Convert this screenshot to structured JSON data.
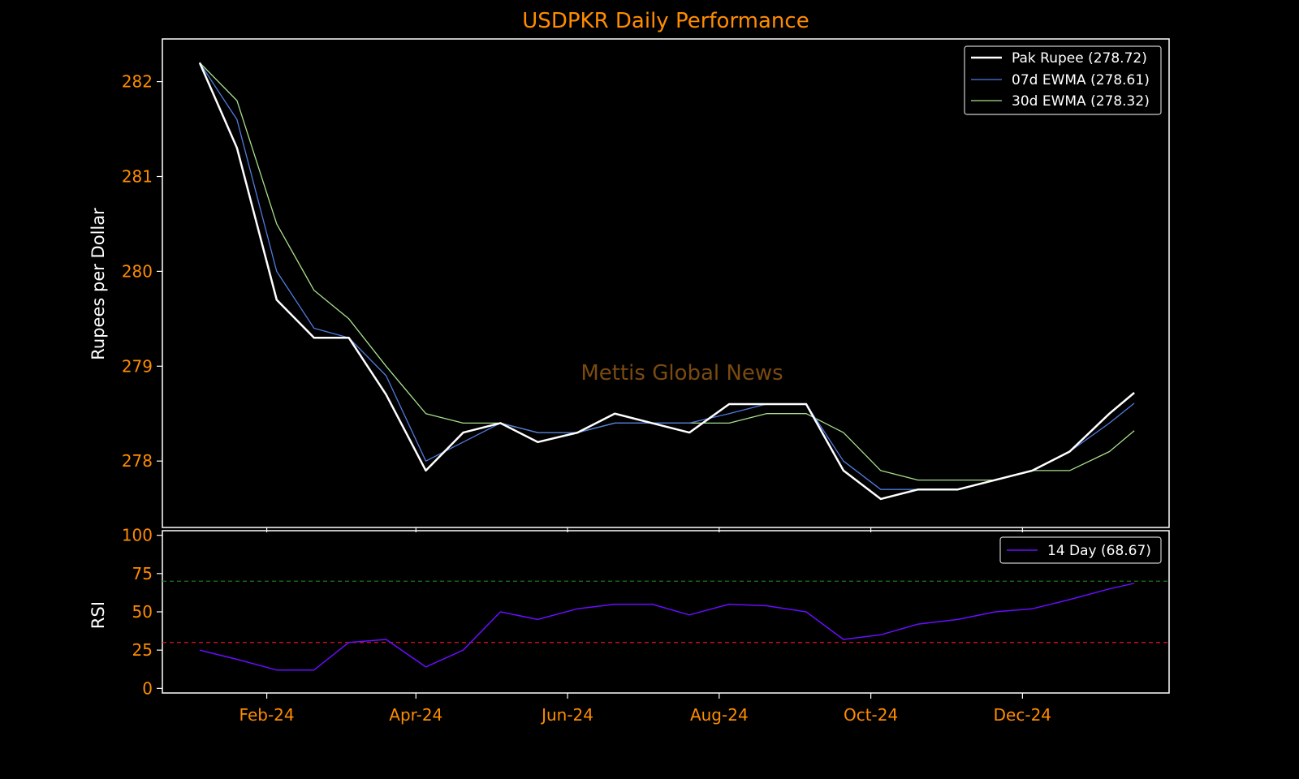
{
  "chart_data": [
    {
      "type": "line",
      "title": "USDPKR Daily Performance",
      "ylabel": "Rupees per Dollar",
      "xlabel": "",
      "x": [
        "2024-01-05",
        "2024-01-20",
        "2024-02-05",
        "2024-02-20",
        "2024-03-05",
        "2024-03-20",
        "2024-04-05",
        "2024-04-20",
        "2024-05-05",
        "2024-05-20",
        "2024-06-05",
        "2024-06-20",
        "2024-07-05",
        "2024-07-20",
        "2024-08-05",
        "2024-08-20",
        "2024-09-05",
        "2024-09-20",
        "2024-10-05",
        "2024-10-20",
        "2024-11-05",
        "2024-11-20",
        "2024-12-05",
        "2024-12-20",
        "2025-01-05",
        "2025-01-15"
      ],
      "series": [
        {
          "name": "Pak Rupee (278.72)",
          "color": "#ffffff",
          "values": [
            282.2,
            281.3,
            279.7,
            279.3,
            279.3,
            278.7,
            277.9,
            278.3,
            278.4,
            278.2,
            278.3,
            278.5,
            278.4,
            278.3,
            278.6,
            278.6,
            278.6,
            277.9,
            277.6,
            277.7,
            277.7,
            277.8,
            277.9,
            278.1,
            278.5,
            278.72
          ]
        },
        {
          "name": "07d EWMA (278.61)",
          "color": "#4f7be0",
          "values": [
            282.2,
            281.6,
            280.0,
            279.4,
            279.3,
            278.9,
            278.0,
            278.2,
            278.4,
            278.3,
            278.3,
            278.4,
            278.4,
            278.4,
            278.5,
            278.6,
            278.6,
            278.0,
            277.7,
            277.7,
            277.7,
            277.8,
            277.9,
            278.1,
            278.4,
            278.61
          ]
        },
        {
          "name": "30d EWMA (278.32)",
          "color": "#a8e08c",
          "values": [
            282.2,
            281.8,
            280.5,
            279.8,
            279.5,
            279.0,
            278.5,
            278.4,
            278.4,
            278.3,
            278.3,
            278.4,
            278.4,
            278.4,
            278.4,
            278.5,
            278.5,
            278.3,
            277.9,
            277.8,
            277.8,
            277.8,
            277.9,
            277.9,
            278.1,
            278.32
          ]
        }
      ],
      "yticks": [
        "278",
        "279",
        "280",
        "281",
        "282"
      ],
      "ylim": [
        277.3,
        282.45
      ],
      "legend_position": "top-right",
      "annotation": "Mettis Global News",
      "grid": false
    },
    {
      "type": "line",
      "ylabel": "RSI",
      "x": [
        "2024-01-05",
        "2024-01-20",
        "2024-02-05",
        "2024-02-20",
        "2024-03-05",
        "2024-03-20",
        "2024-04-05",
        "2024-04-20",
        "2024-05-05",
        "2024-05-20",
        "2024-06-05",
        "2024-06-20",
        "2024-07-05",
        "2024-07-20",
        "2024-08-05",
        "2024-08-20",
        "2024-09-05",
        "2024-09-20",
        "2024-10-05",
        "2024-10-20",
        "2024-11-05",
        "2024-11-20",
        "2024-12-05",
        "2024-12-20",
        "2025-01-05",
        "2025-01-15"
      ],
      "series": [
        {
          "name": "14 Day (68.67)",
          "color": "#6a0dff",
          "values": [
            25,
            19,
            12,
            12,
            30,
            32,
            14,
            25,
            50,
            45,
            52,
            55,
            55,
            48,
            55,
            54,
            50,
            32,
            35,
            42,
            45,
            50,
            52,
            58,
            65,
            68.67
          ]
        }
      ],
      "reference_lines": [
        {
          "value": 70,
          "color": "#1a7a1a"
        },
        {
          "value": 30,
          "color": "#e0101f"
        }
      ],
      "yticks": [
        "0",
        "25",
        "50",
        "75",
        "100"
      ],
      "ylim": [
        -3,
        103
      ],
      "legend_position": "top-right",
      "grid": false
    }
  ],
  "xticks": [
    {
      "label": "Feb-24",
      "date": "2024-02-01"
    },
    {
      "label": "Apr-24",
      "date": "2024-04-01"
    },
    {
      "label": "Jun-24",
      "date": "2024-06-01"
    },
    {
      "label": "Aug-24",
      "date": "2024-08-01"
    },
    {
      "label": "Oct-24",
      "date": "2024-10-01"
    },
    {
      "label": "Dec-24",
      "date": "2024-12-01"
    }
  ],
  "colors": {
    "background": "#000000",
    "accent_text": "#ff8c00",
    "axis": "#ffffff",
    "watermark": "#7a4a10"
  }
}
